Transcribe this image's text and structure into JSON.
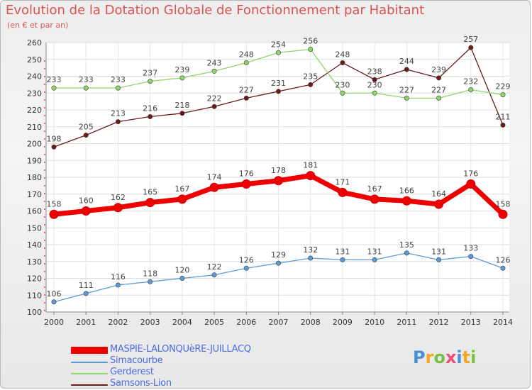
{
  "chart_data": {
    "type": "line",
    "title": "Evolution de la Dotation Globale de Fonctionnement par Habitant",
    "subtitle": "(en € et par an)",
    "xlabel": "",
    "ylabel": "",
    "categories": [
      "2000",
      "2001",
      "2002",
      "2003",
      "2004",
      "2005",
      "2006",
      "2007",
      "2008",
      "2009",
      "2010",
      "2011",
      "2012",
      "2013",
      "2014"
    ],
    "ylim": [
      100,
      260
    ],
    "yticks": [
      100,
      110,
      120,
      130,
      140,
      150,
      160,
      170,
      180,
      190,
      200,
      210,
      220,
      230,
      240,
      250,
      260
    ],
    "grid": true,
    "legend_position": "bottom-left",
    "series": [
      {
        "name": "Samsons-Lion",
        "color": "#6b1a1a",
        "values": [
          198,
          205,
          213,
          216,
          218,
          222,
          227,
          231,
          235,
          248,
          238,
          244,
          239,
          257,
          211
        ]
      },
      {
        "name": "Gerderest",
        "color": "#8fd669",
        "values": [
          233,
          233,
          233,
          237,
          239,
          243,
          248,
          254,
          256,
          230,
          230,
          227,
          227,
          232,
          229
        ]
      },
      {
        "name": "Simacourbe",
        "color": "#5b9bd5",
        "values": [
          106,
          111,
          116,
          118,
          120,
          122,
          126,
          129,
          132,
          131,
          131,
          135,
          131,
          133,
          126
        ]
      },
      {
        "name": "MASPIE-LALONQUèRE-JUILLACQ",
        "color": "#ee0000",
        "values": [
          158,
          160,
          162,
          165,
          167,
          174,
          176,
          178,
          181,
          171,
          167,
          166,
          164,
          176,
          158
        ]
      }
    ],
    "legend_order": [
      "MASPIE-LALONQUèRE-JUILLACQ",
      "Simacourbe",
      "Gerderest",
      "Samsons-Lion"
    ]
  },
  "logo": {
    "text": "Proxiti"
  }
}
